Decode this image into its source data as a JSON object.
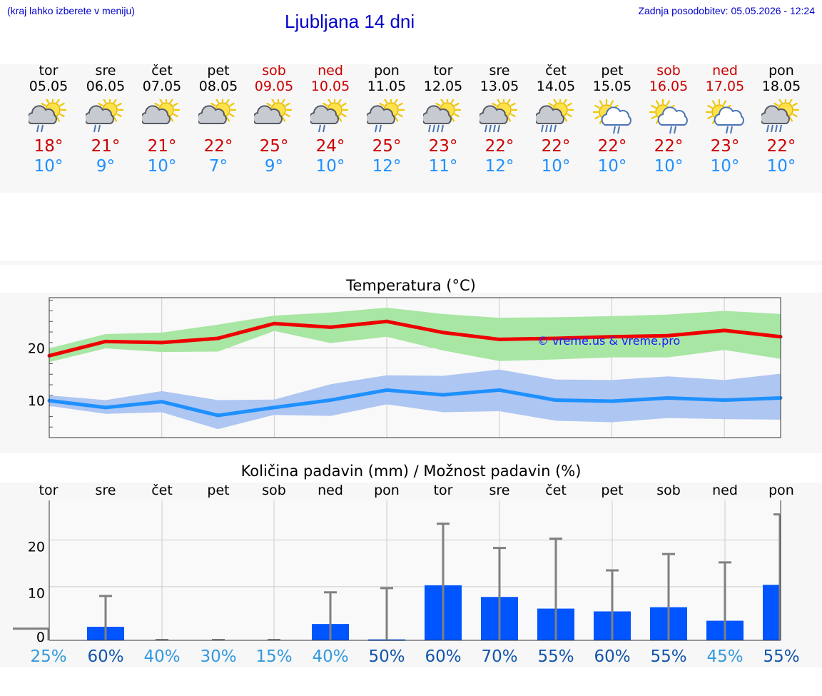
{
  "header": {
    "menu_hint": "(kraj lahko izberete v meniju)",
    "title": "Ljubljana 14 dni",
    "updated": "Zadnja posodobitev: 05.05.2026 - 12:24"
  },
  "forecast": [
    {
      "day": "tor",
      "date": "05.05",
      "hi": "18°",
      "lo": "10°",
      "weekend": false,
      "icon": "sun-cloud-light-rain-icon"
    },
    {
      "day": "sre",
      "date": "06.05",
      "hi": "21°",
      "lo": "9°",
      "weekend": false,
      "icon": "sun-cloud-light-rain-icon"
    },
    {
      "day": "čet",
      "date": "07.05",
      "hi": "21°",
      "lo": "10°",
      "weekend": false,
      "icon": "sun-cloud-icon"
    },
    {
      "day": "pet",
      "date": "08.05",
      "hi": "22°",
      "lo": "7°",
      "weekend": false,
      "icon": "sun-cloud-icon"
    },
    {
      "day": "sob",
      "date": "09.05",
      "hi": "25°",
      "lo": "9°",
      "weekend": true,
      "icon": "sun-cloud-icon"
    },
    {
      "day": "ned",
      "date": "10.05",
      "hi": "24°",
      "lo": "10°",
      "weekend": true,
      "icon": "sun-cloud-light-rain-icon"
    },
    {
      "day": "pon",
      "date": "11.05",
      "hi": "25°",
      "lo": "12°",
      "weekend": false,
      "icon": "sun-cloud-light-rain-icon"
    },
    {
      "day": "tor",
      "date": "12.05",
      "hi": "23°",
      "lo": "11°",
      "weekend": false,
      "icon": "sun-cloud-rain-icon"
    },
    {
      "day": "sre",
      "date": "13.05",
      "hi": "22°",
      "lo": "12°",
      "weekend": false,
      "icon": "sun-cloud-rain-icon"
    },
    {
      "day": "čet",
      "date": "14.05",
      "hi": "22°",
      "lo": "10°",
      "weekend": false,
      "icon": "sun-cloud-rain-icon"
    },
    {
      "day": "pet",
      "date": "15.05",
      "hi": "22°",
      "lo": "10°",
      "weekend": false,
      "icon": "sun-white-cloud-rain-icon"
    },
    {
      "day": "sob",
      "date": "16.05",
      "hi": "22°",
      "lo": "10°",
      "weekend": true,
      "icon": "sun-white-cloud-rain-icon"
    },
    {
      "day": "ned",
      "date": "17.05",
      "hi": "23°",
      "lo": "10°",
      "weekend": true,
      "icon": "sun-white-cloud-rain-icon"
    },
    {
      "day": "pon",
      "date": "18.05",
      "hi": "22°",
      "lo": "10°",
      "weekend": false,
      "icon": "sun-cloud-rain-icon"
    }
  ],
  "colors": {
    "title": "#0000cc",
    "hi_temp": "#cc0000",
    "lo_temp": "#1e90ff",
    "max_line": "#ee0000",
    "max_band": "#a8e6a3",
    "min_line": "#1e90ff",
    "min_band": "#aec6f2",
    "precip_bar": "#0055ff",
    "error_bar": "#808080",
    "pct_light": "#3399dd",
    "pct_dark": "#1155aa"
  },
  "chart_data": [
    {
      "type": "line",
      "title": "Temperatura (°C)",
      "watermark": "© vreme.us & vreme.pro",
      "x": [
        "05.05",
        "06.05",
        "07.05",
        "08.05",
        "09.05",
        "10.05",
        "11.05",
        "12.05",
        "13.05",
        "14.05",
        "15.05",
        "16.05",
        "17.05",
        "18.05"
      ],
      "y_ticks": [
        10,
        20
      ],
      "ylim": [
        3,
        29.5
      ],
      "grid": true,
      "series": [
        {
          "values": [
            18.5,
            21.2,
            21.0,
            21.8,
            24.6,
            23.9,
            25.0,
            22.9,
            21.6,
            21.8,
            22.1,
            22.3,
            23.3,
            22.1
          ],
          "band_low": [
            17.3,
            19.9,
            19.2,
            19.3,
            23.2,
            20.9,
            22.1,
            19.5,
            17.5,
            17.8,
            18.2,
            18.2,
            19.6,
            17.9
          ],
          "band_high": [
            19.9,
            22.6,
            22.9,
            24.4,
            26.1,
            26.7,
            27.6,
            26.4,
            25.7,
            25.8,
            26.0,
            26.3,
            27.0,
            26.4
          ]
        },
        {
          "values": [
            10.0,
            8.7,
            9.8,
            7.2,
            8.7,
            10.1,
            12.0,
            11.1,
            12.0,
            10.1,
            9.9,
            10.5,
            10.1,
            10.5
          ],
          "band_low": [
            9.0,
            7.5,
            7.8,
            4.6,
            7.3,
            7.1,
            9.3,
            7.8,
            8.0,
            6.2,
            5.9,
            6.7,
            6.5,
            6.4
          ],
          "band_high": [
            11.0,
            10.1,
            11.8,
            10.1,
            10.2,
            13.1,
            14.8,
            14.7,
            15.9,
            14.0,
            13.9,
            14.6,
            13.9,
            15.1
          ]
        }
      ]
    },
    {
      "type": "bar",
      "title": "Količina padavin (mm) / Možnost padavin (%)",
      "categories": [
        "tor",
        "sre",
        "čet",
        "pet",
        "sob",
        "ned",
        "pon",
        "tor",
        "sre",
        "čet",
        "pet",
        "sob",
        "ned",
        "pon"
      ],
      "values": [
        0.4,
        2.9,
        0.0,
        0.0,
        0.0,
        3.5,
        0.2,
        11.8,
        9.3,
        6.8,
        6.2,
        7.1,
        4.2,
        11.9
      ],
      "error_high": [
        2.5,
        9.5,
        0.0,
        0.0,
        0.0,
        10.3,
        11.2,
        25.0,
        19.8,
        21.8,
        15.0,
        18.5,
        16.7,
        27.0
      ],
      "probability": [
        "25%",
        "60%",
        "40%",
        "30%",
        "15%",
        "40%",
        "50%",
        "60%",
        "70%",
        "55%",
        "60%",
        "55%",
        "45%",
        "55%"
      ],
      "probability_dark": [
        false,
        true,
        false,
        false,
        false,
        false,
        true,
        true,
        true,
        true,
        true,
        true,
        false,
        true
      ],
      "y_ticks": [
        0,
        10,
        20
      ],
      "ylim": [
        -1.5,
        28.5
      ],
      "grid": true
    }
  ]
}
